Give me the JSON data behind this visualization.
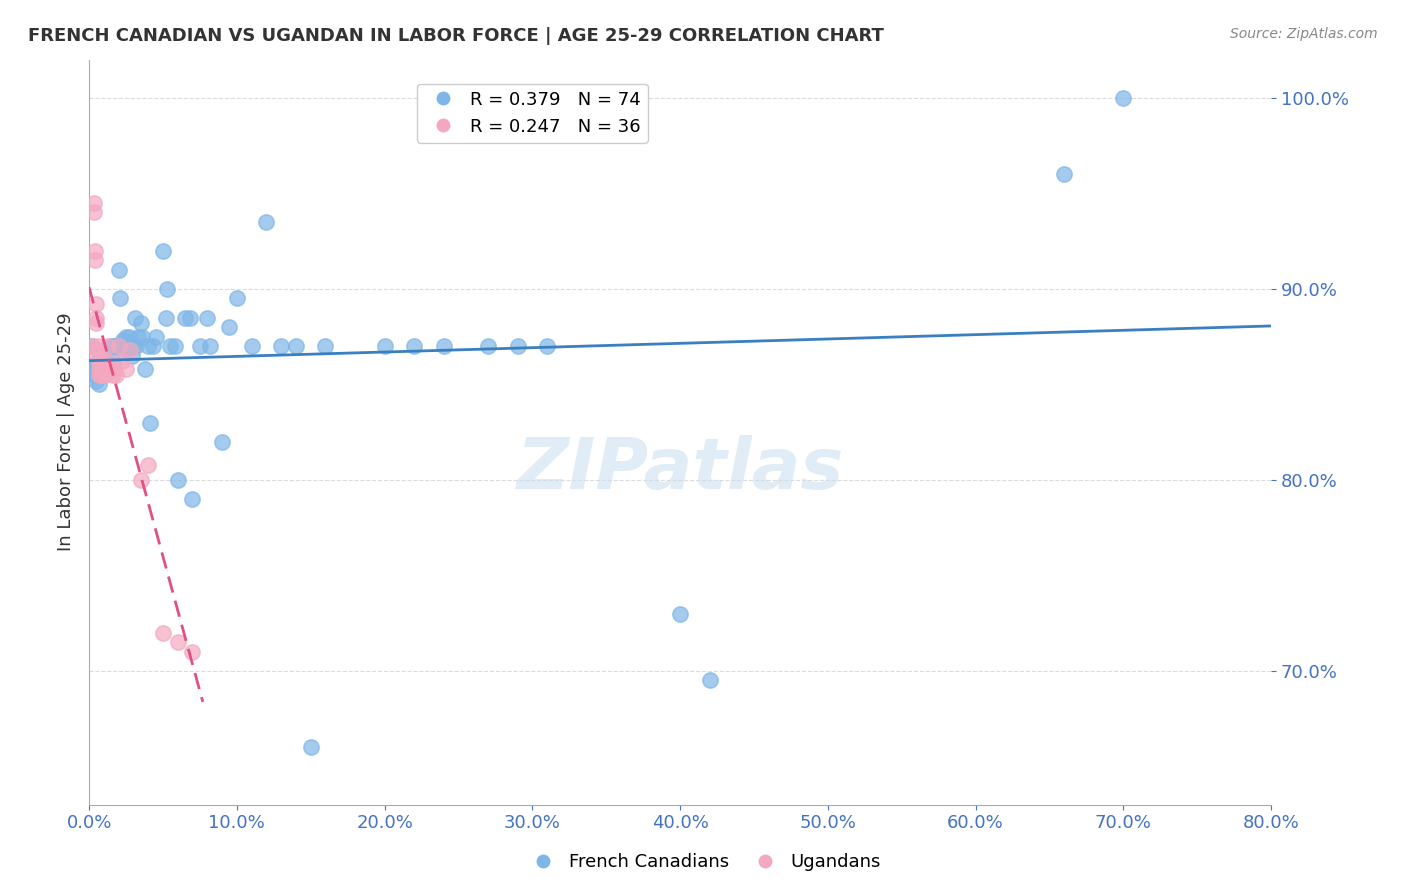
{
  "title": "FRENCH CANADIAN VS UGANDAN IN LABOR FORCE | AGE 25-29 CORRELATION CHART",
  "source_text": "Source: ZipAtlas.com",
  "xlabel": "",
  "ylabel": "In Labor Force | Age 25-29",
  "watermark": "ZIPatlas",
  "xlim": [
    0.0,
    0.8
  ],
  "ylim": [
    0.63,
    1.02
  ],
  "xticks": [
    0.0,
    0.1,
    0.2,
    0.3,
    0.4,
    0.5,
    0.6,
    0.7,
    0.8
  ],
  "yticks_right": [
    0.7,
    0.8,
    0.9,
    1.0
  ],
  "blue_R": 0.379,
  "blue_N": 74,
  "pink_R": 0.247,
  "pink_N": 36,
  "blue_color": "#7EB6E8",
  "pink_color": "#F4A8C0",
  "blue_line_color": "#3A7FBF",
  "pink_line_color": "#E05080",
  "axis_color": "#4472C4",
  "grid_color": "#CCCCCC",
  "title_color": "#333333",
  "blue_x": [
    0.002,
    0.003,
    0.004,
    0.005,
    0.005,
    0.006,
    0.006,
    0.007,
    0.007,
    0.008,
    0.008,
    0.009,
    0.01,
    0.01,
    0.011,
    0.012,
    0.013,
    0.015,
    0.016,
    0.017,
    0.018,
    0.02,
    0.021,
    0.022,
    0.023,
    0.025,
    0.025,
    0.025,
    0.026,
    0.027,
    0.028,
    0.029,
    0.03,
    0.031,
    0.032,
    0.033,
    0.035,
    0.036,
    0.038,
    0.04,
    0.041,
    0.043,
    0.045,
    0.05,
    0.052,
    0.053,
    0.055,
    0.058,
    0.06,
    0.065,
    0.068,
    0.07,
    0.075,
    0.08,
    0.082,
    0.09,
    0.095,
    0.1,
    0.11,
    0.12,
    0.13,
    0.14,
    0.15,
    0.16,
    0.2,
    0.22,
    0.24,
    0.27,
    0.29,
    0.31,
    0.4,
    0.42,
    0.66,
    0.7
  ],
  "blue_y": [
    0.87,
    0.86,
    0.855,
    0.858,
    0.852,
    0.86,
    0.855,
    0.862,
    0.85,
    0.858,
    0.855,
    0.855,
    0.86,
    0.855,
    0.858,
    0.862,
    0.858,
    0.87,
    0.862,
    0.87,
    0.87,
    0.91,
    0.895,
    0.87,
    0.873,
    0.875,
    0.87,
    0.868,
    0.872,
    0.875,
    0.87,
    0.865,
    0.87,
    0.885,
    0.87,
    0.875,
    0.882,
    0.875,
    0.858,
    0.87,
    0.83,
    0.87,
    0.875,
    0.92,
    0.885,
    0.9,
    0.87,
    0.87,
    0.8,
    0.885,
    0.885,
    0.79,
    0.87,
    0.885,
    0.87,
    0.82,
    0.88,
    0.895,
    0.87,
    0.935,
    0.87,
    0.87,
    0.66,
    0.87,
    0.87,
    0.87,
    0.87,
    0.87,
    0.87,
    0.87,
    0.73,
    0.695,
    0.96,
    1.0
  ],
  "pink_x": [
    0.002,
    0.003,
    0.003,
    0.004,
    0.004,
    0.005,
    0.005,
    0.005,
    0.006,
    0.006,
    0.006,
    0.007,
    0.007,
    0.007,
    0.008,
    0.008,
    0.009,
    0.01,
    0.01,
    0.011,
    0.012,
    0.013,
    0.014,
    0.015,
    0.016,
    0.017,
    0.018,
    0.02,
    0.022,
    0.025,
    0.028,
    0.035,
    0.04,
    0.05,
    0.06,
    0.07
  ],
  "pink_y": [
    0.87,
    0.94,
    0.945,
    0.92,
    0.915,
    0.892,
    0.885,
    0.882,
    0.87,
    0.868,
    0.865,
    0.862,
    0.858,
    0.855,
    0.858,
    0.855,
    0.858,
    0.855,
    0.855,
    0.858,
    0.862,
    0.87,
    0.858,
    0.858,
    0.855,
    0.858,
    0.855,
    0.87,
    0.862,
    0.858,
    0.868,
    0.8,
    0.808,
    0.72,
    0.715,
    0.71
  ]
}
